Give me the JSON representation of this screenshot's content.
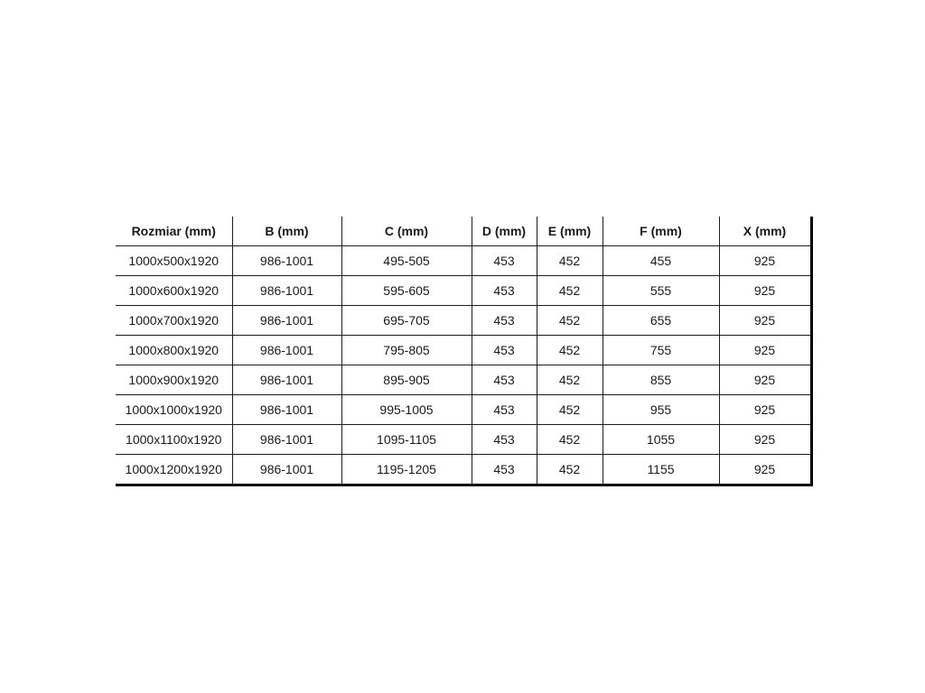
{
  "table": {
    "columns": [
      "Rozmiar (mm)",
      "B (mm)",
      "C (mm)",
      "D (mm)",
      "E (mm)",
      "F (mm)",
      "X (mm)"
    ],
    "rows": [
      [
        "1000x500x1920",
        "986-1001",
        "495-505",
        "453",
        "452",
        "455",
        "925"
      ],
      [
        "1000x600x1920",
        "986-1001",
        "595-605",
        "453",
        "452",
        "555",
        "925"
      ],
      [
        "1000x700x1920",
        "986-1001",
        "695-705",
        "453",
        "452",
        "655",
        "925"
      ],
      [
        "1000x800x1920",
        "986-1001",
        "795-805",
        "453",
        "452",
        "755",
        "925"
      ],
      [
        "1000x900x1920",
        "986-1001",
        "895-905",
        "453",
        "452",
        "855",
        "925"
      ],
      [
        "1000x1000x1920",
        "986-1001",
        "995-1005",
        "453",
        "452",
        "955",
        "925"
      ],
      [
        "1000x1100x1920",
        "986-1001",
        "1095-1105",
        "453",
        "452",
        "1055",
        "925"
      ],
      [
        "1000x1200x1920",
        "986-1001",
        "1195-1205",
        "453",
        "452",
        "1155",
        "925"
      ]
    ],
    "colors": {
      "text": "#1a1a1a",
      "inner_border": "#1c1c1c",
      "outer_border": "#000000",
      "background": "#ffffff"
    }
  }
}
